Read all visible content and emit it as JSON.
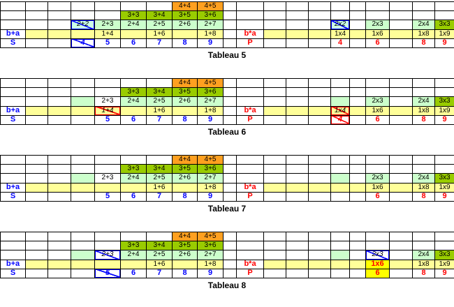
{
  "palette": {
    "orange": "#FFA020",
    "lime": "#99CC00",
    "light_green": "#CCFFCC",
    "light_yellow": "#FFFF99",
    "bright_yellow": "#FFFF00",
    "pale_aqua": "#CCFFE6",
    "white": "#FFFFFF",
    "blue": "#0000FF",
    "red": "#FF0000",
    "black": "#000000"
  },
  "labels": {
    "sum_row": "b+a",
    "sum_result": "S",
    "product_row": "b*a",
    "product_result": "P"
  },
  "tables": [
    {
      "caption": "Tableau 5",
      "cells": [
        {
          "r": 0,
          "c": 7,
          "t": "4+4",
          "bg": "orange"
        },
        {
          "r": 0,
          "c": 8,
          "t": "4+5",
          "bg": "orange"
        },
        {
          "r": 1,
          "c": 5,
          "t": "3+3",
          "bg": "lime"
        },
        {
          "r": 1,
          "c": 6,
          "t": "3+4",
          "bg": "lime"
        },
        {
          "r": 1,
          "c": 7,
          "t": "3+5",
          "bg": "lime"
        },
        {
          "r": 1,
          "c": 8,
          "t": "3+6",
          "bg": "lime"
        },
        {
          "r": 2,
          "c": 3,
          "t": "2+2",
          "bg": "pale_aqua",
          "strike": "blue"
        },
        {
          "r": 2,
          "c": 4,
          "t": "2+3",
          "bg": "light_green"
        },
        {
          "r": 2,
          "c": 5,
          "t": "2+4",
          "bg": "light_green"
        },
        {
          "r": 2,
          "c": 6,
          "t": "2+5",
          "bg": "light_green"
        },
        {
          "r": 2,
          "c": 7,
          "t": "2+6",
          "bg": "light_green"
        },
        {
          "r": 2,
          "c": 8,
          "t": "2+7",
          "bg": "light_green"
        },
        {
          "r": 2,
          "c": 14,
          "t": "2x2",
          "bg": "pale_aqua",
          "strike": "blue"
        },
        {
          "r": 2,
          "c": 16,
          "t": "2x3",
          "bg": "light_green"
        },
        {
          "r": 2,
          "c": 18,
          "t": "2x4",
          "bg": "light_green"
        },
        {
          "r": 2,
          "c": 19,
          "t": "3x3",
          "bg": "lime"
        },
        {
          "r": 3,
          "c": 0,
          "t": "b+a",
          "fg": "blue",
          "b": true
        },
        {
          "r": 3,
          "c": 4,
          "t": "1+4"
        },
        {
          "r": 3,
          "c": 6,
          "t": "1+6"
        },
        {
          "r": 3,
          "c": 8,
          "t": "1+8"
        },
        {
          "r": 3,
          "c": 10,
          "t": "b*a",
          "fg": "red",
          "b": true
        },
        {
          "r": 3,
          "c": 14,
          "t": "1x4"
        },
        {
          "r": 3,
          "c": 16,
          "t": "1x6"
        },
        {
          "r": 3,
          "c": 18,
          "t": "1x8"
        },
        {
          "r": 3,
          "c": 19,
          "t": "1x9"
        },
        {
          "r": 4,
          "c": 0,
          "t": "S",
          "fg": "blue",
          "b": true
        },
        {
          "r": 4,
          "c": 3,
          "t": "4",
          "fg": "blue",
          "b": true,
          "strike": "blue"
        },
        {
          "r": 4,
          "c": 4,
          "t": "5",
          "fg": "blue",
          "b": true
        },
        {
          "r": 4,
          "c": 5,
          "t": "6",
          "fg": "blue",
          "b": true
        },
        {
          "r": 4,
          "c": 6,
          "t": "7",
          "fg": "blue",
          "b": true
        },
        {
          "r": 4,
          "c": 7,
          "t": "8",
          "fg": "blue",
          "b": true
        },
        {
          "r": 4,
          "c": 8,
          "t": "9",
          "fg": "blue",
          "b": true
        },
        {
          "r": 4,
          "c": 10,
          "t": "P",
          "fg": "red",
          "b": true
        },
        {
          "r": 4,
          "c": 14,
          "t": "4",
          "fg": "red",
          "b": true
        },
        {
          "r": 4,
          "c": 16,
          "t": "6",
          "fg": "red",
          "b": true
        },
        {
          "r": 4,
          "c": 18,
          "t": "8",
          "fg": "red",
          "b": true
        },
        {
          "r": 4,
          "c": 19,
          "t": "9",
          "fg": "red",
          "b": true
        }
      ]
    },
    {
      "caption": "Tableau 6",
      "cells": [
        {
          "r": 0,
          "c": 7,
          "t": "4+4",
          "bg": "orange"
        },
        {
          "r": 0,
          "c": 8,
          "t": "4+5",
          "bg": "orange"
        },
        {
          "r": 1,
          "c": 5,
          "t": "3+3",
          "bg": "lime"
        },
        {
          "r": 1,
          "c": 6,
          "t": "3+4",
          "bg": "lime"
        },
        {
          "r": 1,
          "c": 7,
          "t": "3+5",
          "bg": "lime"
        },
        {
          "r": 1,
          "c": 8,
          "t": "3+6",
          "bg": "lime"
        },
        {
          "r": 2,
          "c": 3,
          "t": "",
          "bg": "light_green"
        },
        {
          "r": 2,
          "c": 4,
          "t": "2+3"
        },
        {
          "r": 2,
          "c": 5,
          "t": "2+4",
          "bg": "light_green"
        },
        {
          "r": 2,
          "c": 6,
          "t": "2+5",
          "bg": "light_green"
        },
        {
          "r": 2,
          "c": 7,
          "t": "2+6",
          "bg": "light_green"
        },
        {
          "r": 2,
          "c": 8,
          "t": "2+7",
          "bg": "light_green"
        },
        {
          "r": 2,
          "c": 14,
          "t": "",
          "bg": "light_green"
        },
        {
          "r": 2,
          "c": 16,
          "t": "2x3",
          "bg": "light_green"
        },
        {
          "r": 2,
          "c": 18,
          "t": "2x4",
          "bg": "light_green"
        },
        {
          "r": 2,
          "c": 19,
          "t": "3x3",
          "bg": "lime"
        },
        {
          "r": 3,
          "c": 0,
          "t": "b+a",
          "fg": "blue",
          "b": true
        },
        {
          "r": 3,
          "c": 4,
          "t": "1+4",
          "strike": "red"
        },
        {
          "r": 3,
          "c": 6,
          "t": "1+6"
        },
        {
          "r": 3,
          "c": 8,
          "t": "1+8"
        },
        {
          "r": 3,
          "c": 10,
          "t": "b*a",
          "fg": "red",
          "b": true
        },
        {
          "r": 3,
          "c": 14,
          "t": "1x4",
          "strike": "red"
        },
        {
          "r": 3,
          "c": 16,
          "t": "1x6"
        },
        {
          "r": 3,
          "c": 18,
          "t": "1x8"
        },
        {
          "r": 3,
          "c": 19,
          "t": "1x9"
        },
        {
          "r": 4,
          "c": 0,
          "t": "S",
          "fg": "blue",
          "b": true
        },
        {
          "r": 4,
          "c": 4,
          "t": "5",
          "fg": "blue",
          "b": true
        },
        {
          "r": 4,
          "c": 5,
          "t": "6",
          "fg": "blue",
          "b": true
        },
        {
          "r": 4,
          "c": 6,
          "t": "7",
          "fg": "blue",
          "b": true
        },
        {
          "r": 4,
          "c": 7,
          "t": "8",
          "fg": "blue",
          "b": true
        },
        {
          "r": 4,
          "c": 8,
          "t": "9",
          "fg": "blue",
          "b": true
        },
        {
          "r": 4,
          "c": 10,
          "t": "P",
          "fg": "red",
          "b": true
        },
        {
          "r": 4,
          "c": 14,
          "t": "4",
          "fg": "red",
          "b": true,
          "strike": "red"
        },
        {
          "r": 4,
          "c": 16,
          "t": "6",
          "fg": "red",
          "b": true
        },
        {
          "r": 4,
          "c": 18,
          "t": "8",
          "fg": "red",
          "b": true
        },
        {
          "r": 4,
          "c": 19,
          "t": "9",
          "fg": "red",
          "b": true
        }
      ]
    },
    {
      "caption": "Tableau 7",
      "cells": [
        {
          "r": 0,
          "c": 7,
          "t": "4+4",
          "bg": "orange"
        },
        {
          "r": 0,
          "c": 8,
          "t": "4+5",
          "bg": "orange"
        },
        {
          "r": 1,
          "c": 5,
          "t": "3+3",
          "bg": "lime"
        },
        {
          "r": 1,
          "c": 6,
          "t": "3+4",
          "bg": "lime"
        },
        {
          "r": 1,
          "c": 7,
          "t": "3+5",
          "bg": "lime"
        },
        {
          "r": 1,
          "c": 8,
          "t": "3+6",
          "bg": "lime"
        },
        {
          "r": 2,
          "c": 3,
          "t": "",
          "bg": "light_green"
        },
        {
          "r": 2,
          "c": 4,
          "t": "2+3"
        },
        {
          "r": 2,
          "c": 5,
          "t": "2+4",
          "bg": "light_green"
        },
        {
          "r": 2,
          "c": 6,
          "t": "2+5",
          "bg": "light_green"
        },
        {
          "r": 2,
          "c": 7,
          "t": "2+6",
          "bg": "light_green"
        },
        {
          "r": 2,
          "c": 8,
          "t": "2+7",
          "bg": "light_green"
        },
        {
          "r": 2,
          "c": 14,
          "t": "",
          "bg": "light_green"
        },
        {
          "r": 2,
          "c": 16,
          "t": "2x3",
          "bg": "light_green"
        },
        {
          "r": 2,
          "c": 18,
          "t": "2x4",
          "bg": "light_green"
        },
        {
          "r": 2,
          "c": 19,
          "t": "3x3",
          "bg": "lime"
        },
        {
          "r": 3,
          "c": 0,
          "t": "b+a",
          "fg": "blue",
          "b": true
        },
        {
          "r": 3,
          "c": 6,
          "t": "1+6"
        },
        {
          "r": 3,
          "c": 8,
          "t": "1+8"
        },
        {
          "r": 3,
          "c": 10,
          "t": "b*a",
          "fg": "red",
          "b": true
        },
        {
          "r": 3,
          "c": 16,
          "t": "1x6"
        },
        {
          "r": 3,
          "c": 18,
          "t": "1x8"
        },
        {
          "r": 3,
          "c": 19,
          "t": "1x9"
        },
        {
          "r": 4,
          "c": 0,
          "t": "S",
          "fg": "blue",
          "b": true
        },
        {
          "r": 4,
          "c": 4,
          "t": "5",
          "fg": "blue",
          "b": true
        },
        {
          "r": 4,
          "c": 5,
          "t": "6",
          "fg": "blue",
          "b": true
        },
        {
          "r": 4,
          "c": 6,
          "t": "7",
          "fg": "blue",
          "b": true
        },
        {
          "r": 4,
          "c": 7,
          "t": "8",
          "fg": "blue",
          "b": true
        },
        {
          "r": 4,
          "c": 8,
          "t": "9",
          "fg": "blue",
          "b": true
        },
        {
          "r": 4,
          "c": 10,
          "t": "P",
          "fg": "red",
          "b": true
        },
        {
          "r": 4,
          "c": 16,
          "t": "6",
          "fg": "red",
          "b": true
        },
        {
          "r": 4,
          "c": 18,
          "t": "8",
          "fg": "red",
          "b": true
        },
        {
          "r": 4,
          "c": 19,
          "t": "9",
          "fg": "red",
          "b": true
        }
      ]
    },
    {
      "caption": "Tableau 8",
      "cells": [
        {
          "r": 0,
          "c": 7,
          "t": "4+4",
          "bg": "orange"
        },
        {
          "r": 0,
          "c": 8,
          "t": "4+5",
          "bg": "orange"
        },
        {
          "r": 1,
          "c": 5,
          "t": "3+3",
          "bg": "lime"
        },
        {
          "r": 1,
          "c": 6,
          "t": "3+4",
          "bg": "lime"
        },
        {
          "r": 1,
          "c": 7,
          "t": "3+5",
          "bg": "lime"
        },
        {
          "r": 1,
          "c": 8,
          "t": "3+6",
          "bg": "lime"
        },
        {
          "r": 2,
          "c": 3,
          "t": "",
          "bg": "light_green"
        },
        {
          "r": 2,
          "c": 4,
          "t": "2+3",
          "strike": "blue"
        },
        {
          "r": 2,
          "c": 5,
          "t": "2+4",
          "bg": "light_green"
        },
        {
          "r": 2,
          "c": 6,
          "t": "2+5",
          "bg": "light_green"
        },
        {
          "r": 2,
          "c": 7,
          "t": "2+6",
          "bg": "light_green"
        },
        {
          "r": 2,
          "c": 8,
          "t": "2+7",
          "bg": "light_green"
        },
        {
          "r": 2,
          "c": 14,
          "t": "",
          "bg": "light_green"
        },
        {
          "r": 2,
          "c": 16,
          "t": "2x3",
          "strike": "blue"
        },
        {
          "r": 2,
          "c": 18,
          "t": "2x4",
          "bg": "light_green"
        },
        {
          "r": 2,
          "c": 19,
          "t": "3x3",
          "bg": "lime"
        },
        {
          "r": 3,
          "c": 0,
          "t": "b+a",
          "fg": "blue",
          "b": true
        },
        {
          "r": 3,
          "c": 6,
          "t": "1+6"
        },
        {
          "r": 3,
          "c": 8,
          "t": "1+8"
        },
        {
          "r": 3,
          "c": 10,
          "t": "b*a",
          "fg": "red",
          "b": true
        },
        {
          "r": 3,
          "c": 16,
          "t": "1x6",
          "fg": "red",
          "b": true,
          "bg": "bright_yellow"
        },
        {
          "r": 3,
          "c": 18,
          "t": "1x8"
        },
        {
          "r": 3,
          "c": 19,
          "t": "1x9"
        },
        {
          "r": 4,
          "c": 0,
          "t": "S",
          "fg": "blue",
          "b": true
        },
        {
          "r": 4,
          "c": 4,
          "t": "5",
          "fg": "blue",
          "b": true,
          "strike": "blue"
        },
        {
          "r": 4,
          "c": 5,
          "t": "6",
          "fg": "blue",
          "b": true
        },
        {
          "r": 4,
          "c": 6,
          "t": "7",
          "fg": "blue",
          "b": true
        },
        {
          "r": 4,
          "c": 7,
          "t": "8",
          "fg": "blue",
          "b": true
        },
        {
          "r": 4,
          "c": 8,
          "t": "9",
          "fg": "blue",
          "b": true
        },
        {
          "r": 4,
          "c": 10,
          "t": "P",
          "fg": "red",
          "b": true
        },
        {
          "r": 4,
          "c": 16,
          "t": "6",
          "fg": "red",
          "b": true,
          "bg": "bright_yellow"
        },
        {
          "r": 4,
          "c": 18,
          "t": "8",
          "fg": "red",
          "b": true
        },
        {
          "r": 4,
          "c": 19,
          "t": "9",
          "fg": "red",
          "b": true
        }
      ]
    }
  ]
}
